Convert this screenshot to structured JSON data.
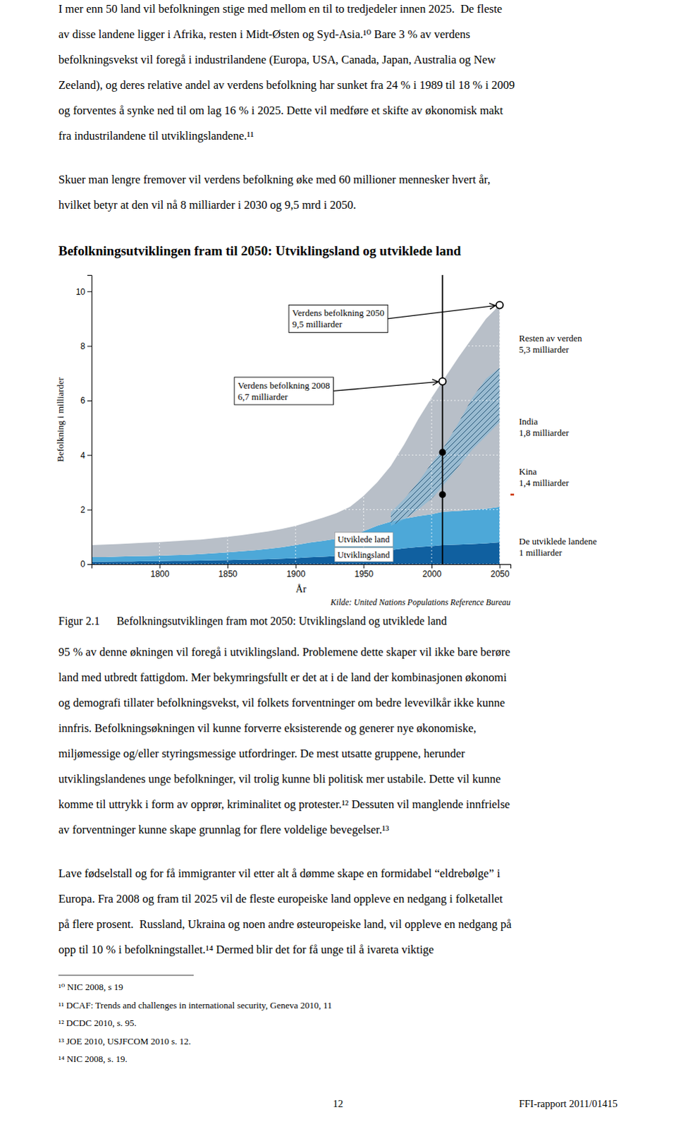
{
  "page": {
    "paragraphs_before": [
      [
        "I mer enn 50 land vil befolkningen stige med mellom en til to tredjedeler innen 2025.  De fleste",
        "av disse landene ligger i Afrika, resten i Midt-Østen og Syd-Asia.¹⁰ Bare 3 % av verdens",
        "befolkningsvekst vil foregå i industrilandene (Europa, USA, Canada, Japan, Australia og New",
        "Zeeland), og deres relative andel av verdens befolkning har sunket fra 24 % i 1989 til 18 % i 2009",
        "og forventes å synke ned til om lag 16 % i 2025. Dette vil medføre et skifte av økonomisk makt",
        "fra industrilandene til utviklingslandene.¹¹"
      ],
      [
        "Skuer man lengre fremover vil verdens befolkning øke med 60 millioner mennesker hvert år,",
        "hvilket betyr at den vil nå 8 milliarder i 2030 og 9,5 mrd i 2050."
      ]
    ],
    "paragraphs_after": [
      [
        "95 % av denne økningen vil foregå i utviklingsland. Problemene dette skaper vil ikke bare berøre",
        "land med utbredt fattigdom. Mer bekymringsfullt er det at i de land der kombinasjonen økonomi",
        "og demografi tillater befolkningsvekst, vil folkets forventninger om bedre levevilkår ikke kunne",
        "innfris. Befolkningsøkningen vil kunne forverre eksisterende og generer nye økonomiske,",
        "miljømessige og/eller styringsmessige utfordringer. De mest utsatte gruppene, herunder",
        "utviklingslandenes unge befolkninger, vil trolig kunne bli politisk mer ustabile. Dette vil kunne",
        "komme til uttrykk i form av opprør, kriminalitet og protester.¹² Dessuten vil manglende innfrielse",
        "av forventninger kunne skape grunnlag for flere voldelige bevegelser.¹³"
      ],
      [
        "Lave fødselstall og for få immigranter vil etter alt å dømme skape en formidabel “eldrebølge” i",
        "Europa. Fra 2008 og fram til 2025 vil de fleste europeiske land oppleve en nedgang i folketallet",
        "på flere prosent.  Russland, Ukraina og noen andre østeuropeiske land, vil oppleve en nedgang på",
        "opp til 10 % i befolkningstallet.¹⁴ Dermed blir det for få unge til å ivareta viktige"
      ]
    ],
    "figure_caption": "Figur 2.1      Befolkningsutviklingen fram mot 2050: Utviklingsland og utviklede land",
    "footnotes": [
      "¹⁰ NIC 2008, s 19",
      "¹¹ DCAF: Trends and challenges in international security, Geneva 2010, 11",
      "¹² DCDC 2010, s. 95.",
      "¹³ JOE 2010, USJFCOM 2010 s. 12.",
      "¹⁴ NIC 2008, s. 19."
    ],
    "page_number": "12",
    "page_label_right": "FFI-rapport 2011/01415"
  },
  "chart_data": {
    "type": "area",
    "stacked": true,
    "title": "Befolkningsutviklingen fram til 2050: Utviklingsland og utviklede land",
    "x_label": "År",
    "y_label": "Befolkning i milliarder",
    "source": "Kilde: United Nations Populations Reference Bureau",
    "x": [
      1750,
      1760,
      1770,
      1780,
      1790,
      1800,
      1810,
      1820,
      1830,
      1840,
      1850,
      1860,
      1870,
      1880,
      1890,
      1900,
      1910,
      1920,
      1930,
      1940,
      1950,
      1960,
      1970,
      1980,
      1990,
      2000,
      2008,
      2020,
      2030,
      2040,
      2050
    ],
    "series": [
      {
        "name": "Utviklingsland",
        "color": "#1060a0",
        "values": [
          0.09,
          0.09,
          0.1,
          0.1,
          0.11,
          0.11,
          0.12,
          0.12,
          0.13,
          0.14,
          0.15,
          0.16,
          0.17,
          0.18,
          0.2,
          0.22,
          0.25,
          0.27,
          0.3,
          0.33,
          0.38,
          0.45,
          0.52,
          0.58,
          0.63,
          0.66,
          0.7,
          0.72,
          0.74,
          0.76,
          0.8
        ]
      },
      {
        "name": "Utviklede land",
        "color": "#4da8d8",
        "values": [
          0.17,
          0.17,
          0.18,
          0.19,
          0.19,
          0.2,
          0.21,
          0.22,
          0.24,
          0.26,
          0.28,
          0.31,
          0.34,
          0.38,
          0.42,
          0.48,
          0.54,
          0.58,
          0.63,
          0.68,
          0.83,
          0.96,
          1.04,
          1.09,
          1.13,
          1.17,
          1.22,
          1.23,
          1.25,
          1.27,
          1.3
        ]
      },
      {
        "color": "#b8bfc8",
        "values": [
          0.44,
          0.46,
          0.46,
          0.47,
          0.49,
          0.5,
          0.51,
          0.53,
          0.53,
          0.55,
          0.57,
          0.59,
          0.62,
          0.64,
          0.67,
          0.7,
          0.76,
          0.85,
          0.94,
          1.09,
          1.29,
          1.59,
          2.04,
          2.73,
          3.54,
          4.27,
          4.78,
          5.65,
          6.31,
          6.97,
          7.4
        ]
      },
      {
        "type": "band",
        "color": "#80b8d8",
        "x": [
          1970,
          1980,
          1990,
          2000,
          2008,
          2020,
          2030,
          2040,
          2050
        ],
        "lower": [
          1.4,
          1.65,
          2.0,
          2.4,
          2.85,
          3.6,
          4.2,
          4.7,
          5.2
        ],
        "upper": [
          1.9,
          2.4,
          3.0,
          3.7,
          4.2,
          5.2,
          6.1,
          6.8,
          7.2
        ]
      }
    ],
    "points": [
      {
        "x": 2008,
        "y": 6.7,
        "marker": "circle-open"
      },
      {
        "x": 2050,
        "y": 9.5,
        "marker": "circle-open"
      },
      {
        "x": 2008,
        "y": 4.1,
        "marker": "circle"
      },
      {
        "x": 2008,
        "y": 2.55,
        "marker": "circle"
      }
    ],
    "vlines": [
      2008
    ],
    "annotations": [
      {
        "text": "Verdens befolkning 2050\n9,5 milliarder",
        "x": 1895,
        "y": 9.0,
        "point": 1
      },
      {
        "text": "Verdens befolkning 2008\n6,7 milliarder",
        "x": 1855,
        "y": 6.35,
        "point": 0
      }
    ],
    "right_labels": [
      {
        "text": "Resten av verden\n5,3 milliarder",
        "y": 8.1
      },
      {
        "text": "India\n1,8 milliarder",
        "y": 5.05
      },
      {
        "text": "Kina\n1,4 milliarder",
        "y": 3.2
      },
      {
        "text": "De utviklede landene\n1 milliarder",
        "y": 0.65
      }
    ],
    "edge_marks": [
      {
        "y": 2.55,
        "color": "#cc3300"
      }
    ],
    "xlim": [
      1750,
      2058
    ],
    "ylim": [
      0,
      10.6
    ],
    "xticks": [
      1800,
      1850,
      1900,
      1950,
      2000,
      2050
    ],
    "yticks": [
      0,
      2,
      4,
      6,
      8,
      10
    ],
    "grid": true
  }
}
